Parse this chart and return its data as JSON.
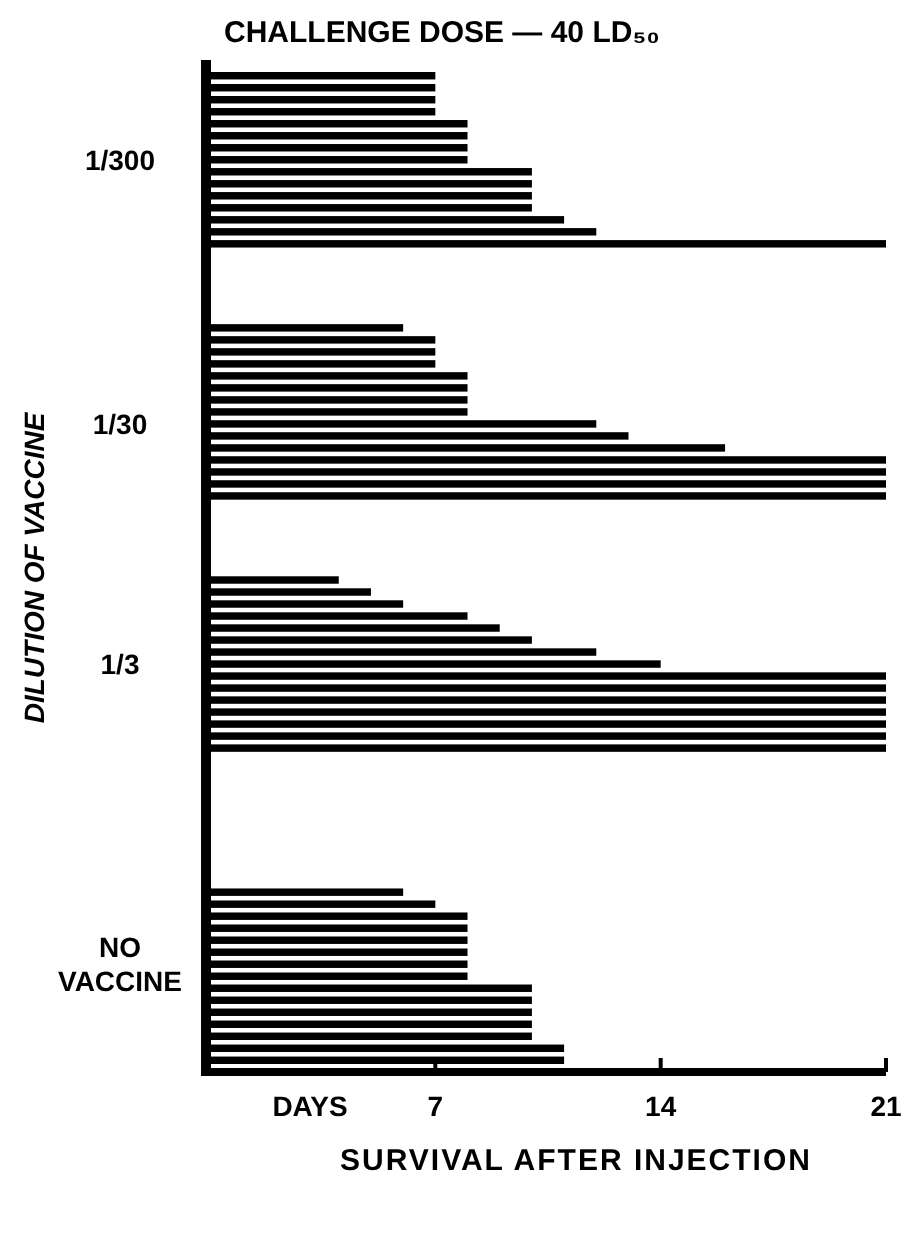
{
  "chart_data": {
    "type": "bar",
    "orientation": "horizontal",
    "title": "CHALLENGE DOSE — 40 LD₅₀",
    "xlabel": "SURVIVAL AFTER INJECTION",
    "ylabel": "DILUTION OF VACCINE",
    "annotations": [
      "DAYS"
    ],
    "categories": [
      null,
      null,
      null,
      null,
      null,
      null,
      null,
      "1/300",
      null,
      null,
      null,
      null,
      null,
      null,
      null,
      null,
      null,
      null,
      null,
      null,
      null,
      null,
      null,
      null,
      null,
      null,
      null,
      null,
      null,
      "1/30",
      null,
      null,
      null,
      null,
      null,
      null,
      null,
      null,
      null,
      null,
      null,
      null,
      null,
      null,
      null,
      null,
      null,
      null,
      null,
      "1/3",
      null,
      null,
      null,
      null,
      null,
      null,
      null,
      null,
      null,
      null,
      null,
      null,
      null,
      null,
      null,
      null,
      null,
      null,
      null,
      null,
      null,
      null,
      null,
      null,
      "NO VACCINE",
      null,
      null,
      null,
      null,
      null,
      null,
      null,
      null
    ],
    "values": [
      7,
      7,
      7,
      7,
      8,
      8,
      8,
      8,
      10,
      10,
      10,
      10,
      11,
      12,
      21,
      null,
      null,
      null,
      null,
      null,
      null,
      6,
      7,
      7,
      7,
      8,
      8,
      8,
      8,
      12,
      13,
      16,
      21,
      21,
      21,
      21,
      null,
      null,
      null,
      null,
      null,
      null,
      4,
      5,
      6,
      8,
      9,
      10,
      12,
      14,
      21,
      21,
      21,
      21,
      21,
      21,
      21,
      null,
      null,
      null,
      null,
      null,
      null,
      null,
      null,
      null,
      null,
      null,
      6,
      7,
      8,
      8,
      8,
      8,
      8,
      8,
      10,
      10,
      10,
      10,
      10,
      11,
      11
    ],
    "color": "#000000",
    "xlim": [
      0,
      21
    ],
    "xticks": [
      7,
      14,
      21
    ]
  }
}
